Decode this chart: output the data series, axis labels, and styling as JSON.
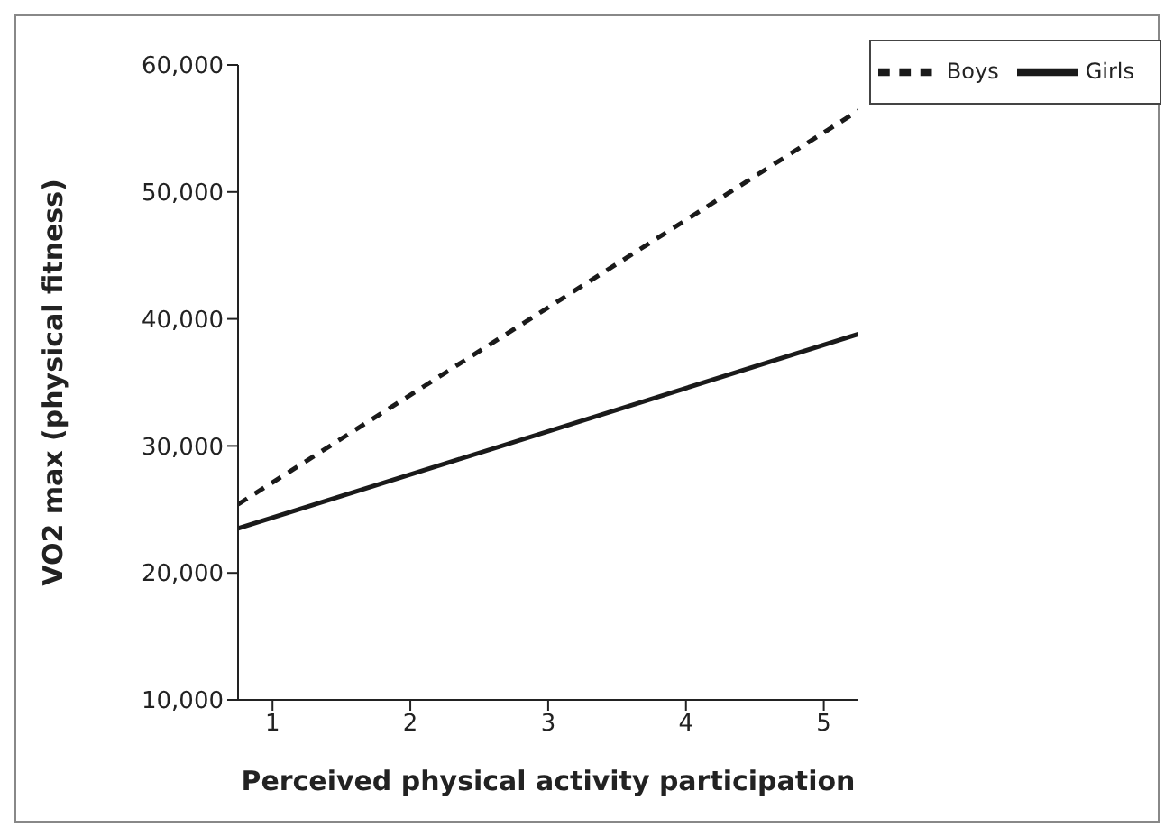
{
  "chart_data": {
    "type": "line",
    "xlabel": "Perceived physical activity participation",
    "ylabel": "VO2 max (physical fitness)",
    "x": [
      0.75,
      5.25
    ],
    "series": [
      {
        "name": "Boys",
        "color": "#1a1a1a",
        "values": [
          25400,
          56400
        ],
        "line_style": "dashed"
      },
      {
        "name": "Girls",
        "color": "#1a1a1a",
        "values": [
          23500,
          38800
        ],
        "line_style": "solid"
      }
    ],
    "xlim": [
      0.75,
      5.25
    ],
    "xticks": [
      1,
      2,
      3,
      4,
      5
    ],
    "ylim": [
      10000,
      60000
    ],
    "yticks": [
      {
        "value": 10000,
        "label": "10,000"
      },
      {
        "value": 20000,
        "label": "20,000"
      },
      {
        "value": 30000,
        "label": "30,000"
      },
      {
        "value": 40000,
        "label": "40,000"
      },
      {
        "value": 50000,
        "label": "50,000"
      },
      {
        "value": 60000,
        "label": "60,000"
      }
    ],
    "grid": false,
    "legend": "top right",
    "marker": "none"
  }
}
